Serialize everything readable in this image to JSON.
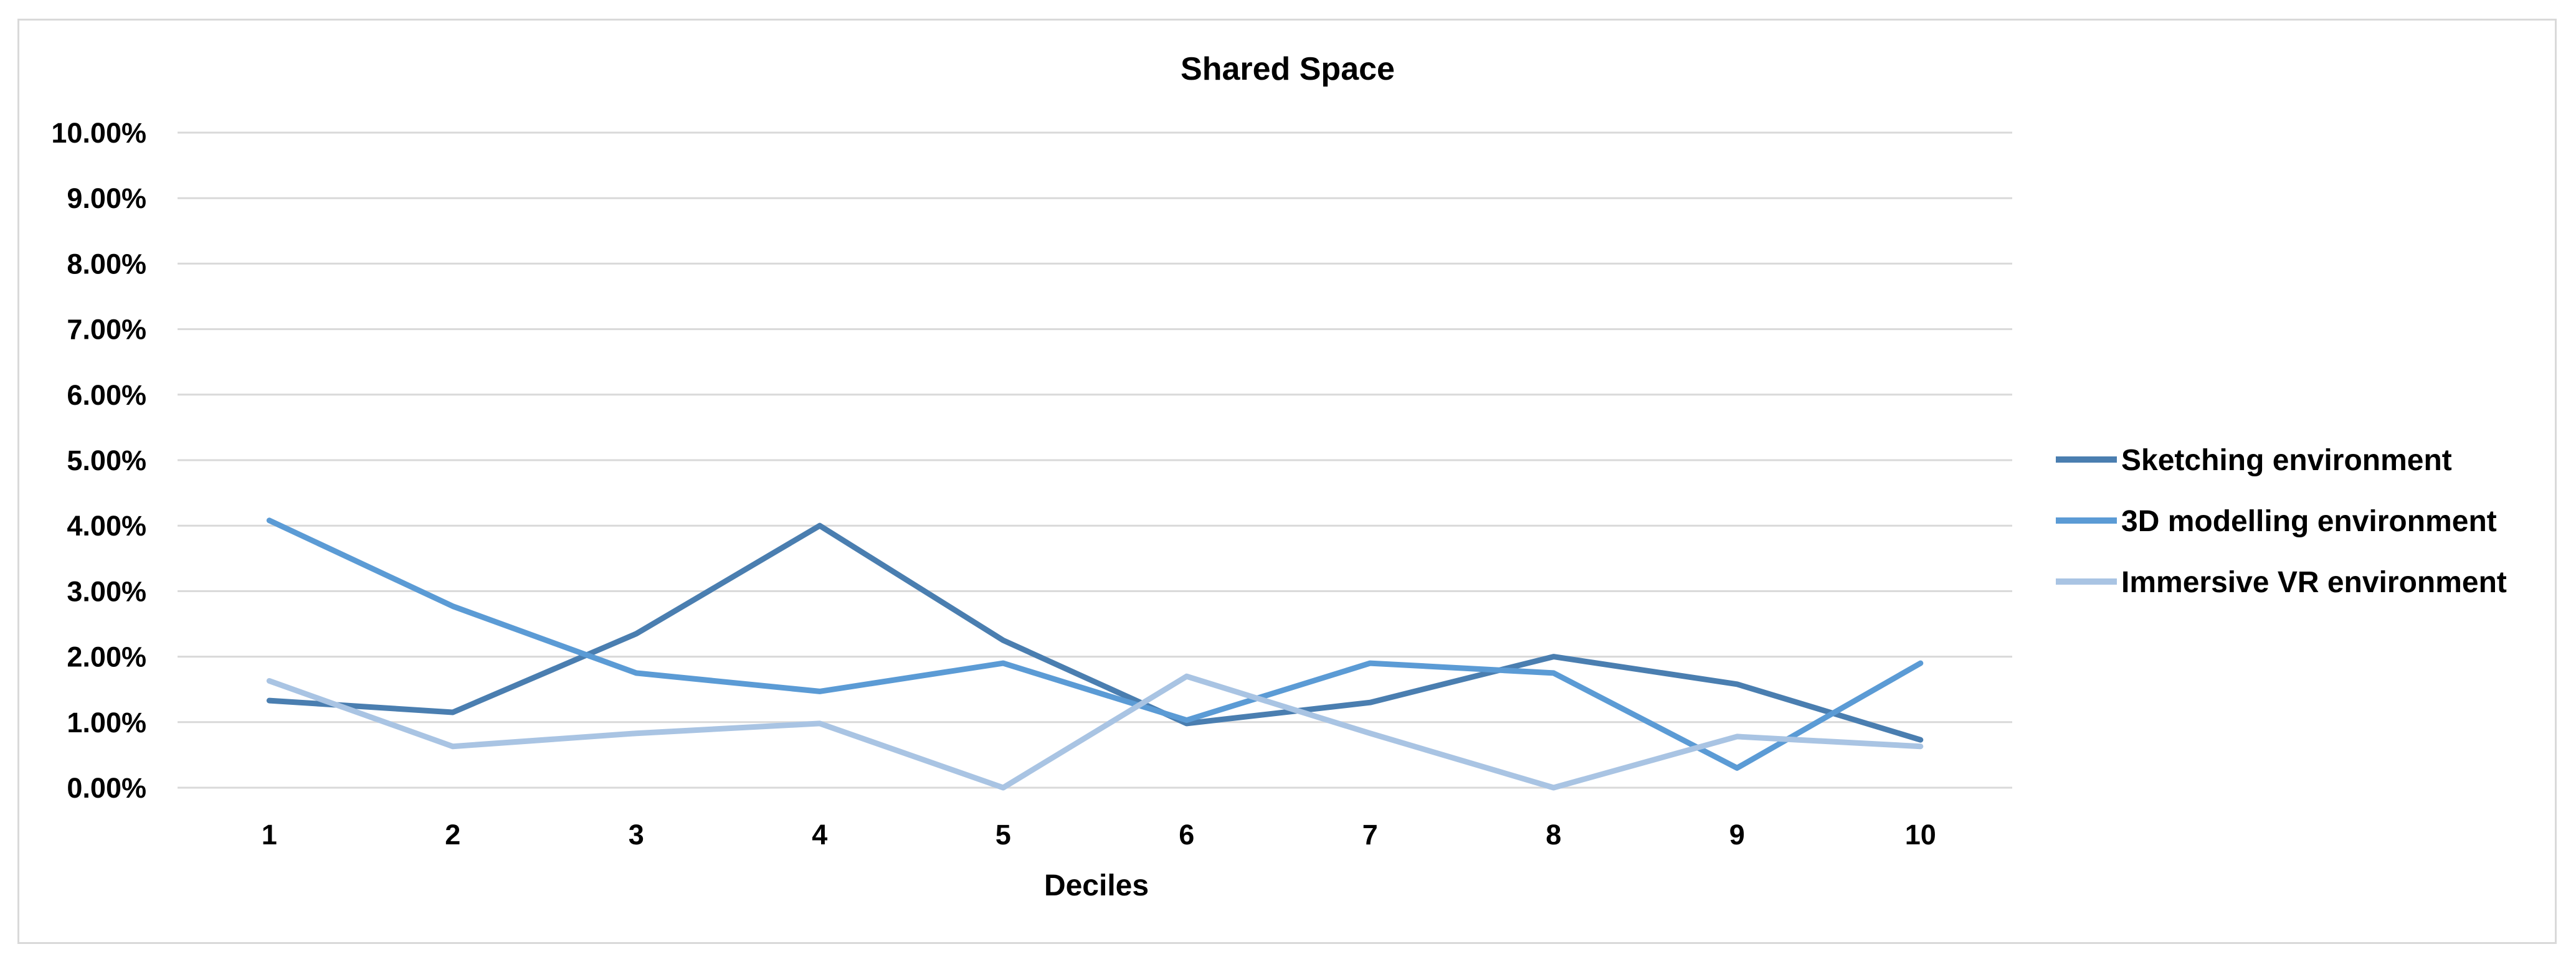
{
  "chart_data": {
    "type": "line",
    "title": "Shared Space",
    "xlabel": "Deciles",
    "ylabel": "",
    "x": [
      1,
      2,
      3,
      4,
      5,
      6,
      7,
      8,
      9,
      10
    ],
    "ylim": [
      0,
      0.1
    ],
    "yticks": [
      0,
      0.01,
      0.02,
      0.03,
      0.04,
      0.05,
      0.06,
      0.07,
      0.08,
      0.09,
      0.1
    ],
    "ytick_labels": [
      "0.00%",
      "1.00%",
      "2.00%",
      "3.00%",
      "4.00%",
      "5.00%",
      "6.00%",
      "7.00%",
      "8.00%",
      "9.00%",
      "10.00%"
    ],
    "grid": true,
    "legend_position": "right",
    "series": [
      {
        "name": "Sketching environment",
        "color": "#4a7eb0",
        "values": [
          0.0133,
          0.0115,
          0.0235,
          0.04,
          0.0225,
          0.0098,
          0.013,
          0.02,
          0.0158,
          0.0073
        ]
      },
      {
        "name": "3D modelling environment",
        "color": "#5b9bd5",
        "values": [
          0.0408,
          0.0277,
          0.0175,
          0.0147,
          0.019,
          0.0103,
          0.019,
          0.0175,
          0.003,
          0.019
        ]
      },
      {
        "name": "Immersive VR environment",
        "color": "#a9c4e3",
        "values": [
          0.0163,
          0.0063,
          0.0083,
          0.0098,
          0.0,
          0.017,
          0.0083,
          0.0,
          0.0078,
          0.0063
        ]
      }
    ]
  }
}
